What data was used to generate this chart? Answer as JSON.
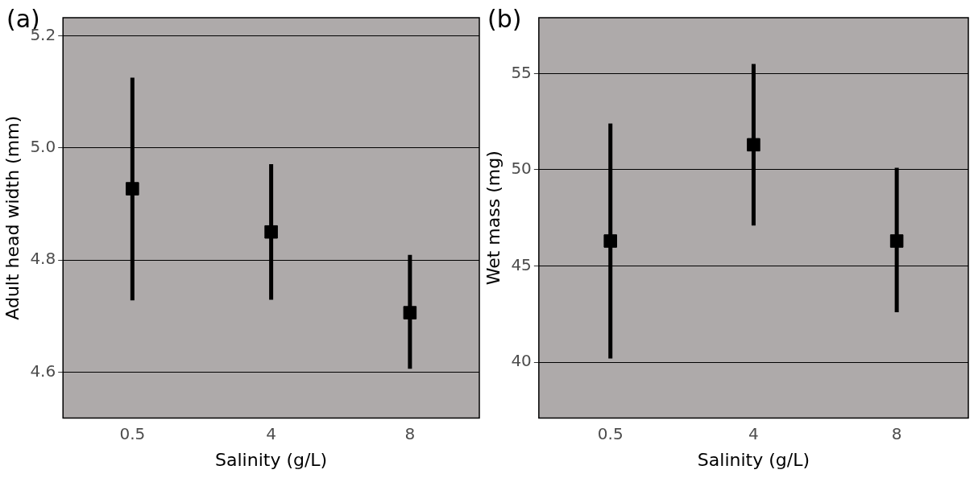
{
  "chart_data": [
    {
      "type": "scatter",
      "annotations": [
        "(a)"
      ],
      "xlabel": "Salinity (g/L)",
      "ylabel": "Adult head width (mm)",
      "categories": [
        "0.5",
        "4",
        "8"
      ],
      "series": [
        {
          "color": "#000000",
          "values": [
            4.927,
            4.85,
            4.706
          ],
          "errors": [
            [
              4.728,
              5.125
            ],
            [
              4.729,
              4.971
            ],
            [
              4.606,
              4.809
            ]
          ]
        }
      ],
      "ylim": [
        4.518,
        5.232
      ],
      "yticks": [
        4.6,
        4.8,
        {
          "value": 5.0,
          "label": "5.0"
        },
        5.2
      ],
      "grid": "y",
      "marker": "square"
    },
    {
      "type": "scatter",
      "annotations": [
        "(b)"
      ],
      "xlabel": "Salinity (g/L)",
      "ylabel": "Wet mass (mg)",
      "categories": [
        "0.5",
        "4",
        "8"
      ],
      "series": [
        {
          "color": "#000000",
          "values": [
            46.3,
            51.3,
            46.3
          ],
          "errors": [
            [
              40.2,
              52.4
            ],
            [
              47.1,
              55.5
            ],
            [
              42.6,
              50.1
            ]
          ]
        }
      ],
      "ylim": [
        37.1,
        57.9
      ],
      "yticks": [
        40,
        45,
        50,
        55
      ],
      "grid": "y",
      "marker": "square"
    }
  ]
}
